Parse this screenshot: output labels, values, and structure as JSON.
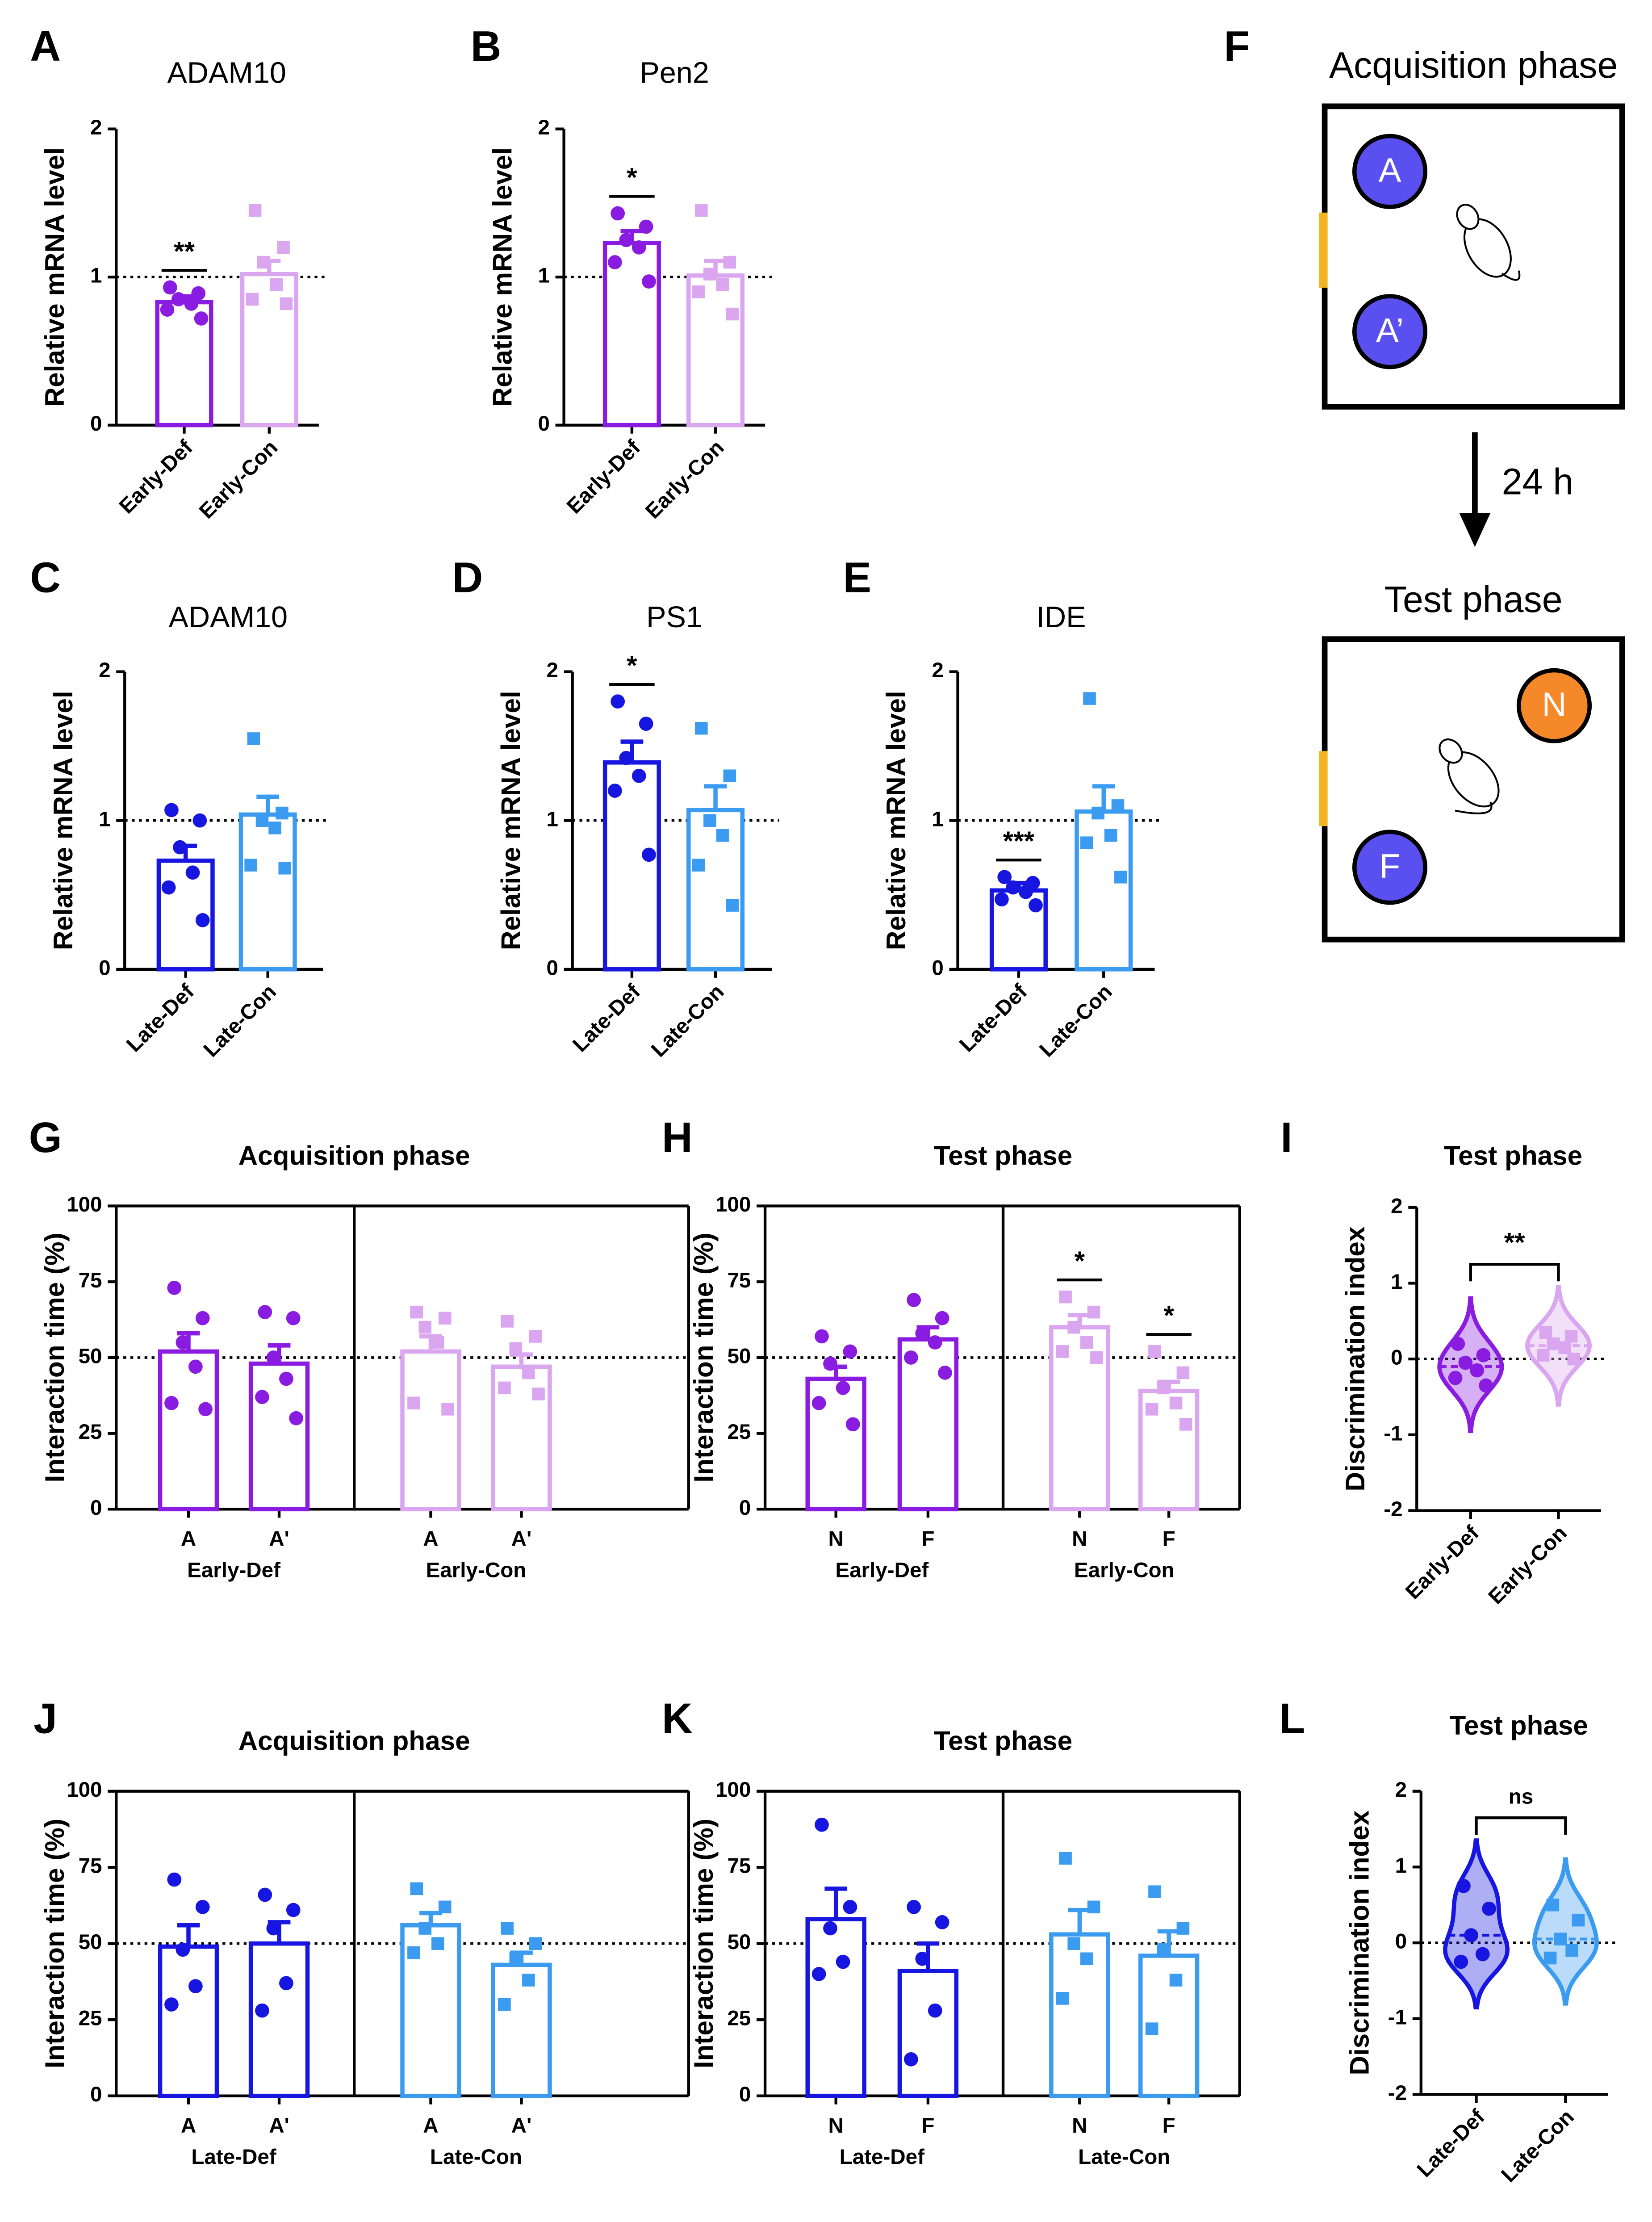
{
  "chart_data": [
    {
      "type": "bar",
      "panel": "A",
      "title": "ADAM10",
      "y_label": "Relative mRNA level",
      "categories": [
        "Early-Def",
        "Early-Con"
      ],
      "values": [
        0.83,
        1.02
      ],
      "errors": [
        0.04,
        0.09
      ],
      "points": [
        [
          0.93,
          0.89,
          0.85,
          0.82,
          0.78,
          0.72
        ],
        [
          1.45,
          1.2,
          1.1,
          0.95,
          0.85,
          0.82
        ]
      ],
      "colors": [
        "#8a1be0",
        "#d9a6ef"
      ],
      "markers": [
        "circle",
        "square"
      ],
      "ylim": [
        0,
        2
      ],
      "yticks": [
        0,
        1,
        2
      ],
      "reference_line": 1,
      "annotations": [
        {
          "text": "**",
          "categories": [
            0
          ]
        }
      ]
    },
    {
      "type": "bar",
      "panel": "B",
      "title": "Pen2",
      "y_label": "Relative mRNA level",
      "categories": [
        "Early-Def",
        "Early-Con"
      ],
      "values": [
        1.23,
        1.01
      ],
      "errors": [
        0.08,
        0.1
      ],
      "points": [
        [
          1.43,
          1.34,
          1.25,
          1.2,
          1.1,
          0.97
        ],
        [
          1.45,
          1.1,
          1.02,
          0.95,
          0.9,
          0.75
        ]
      ],
      "colors": [
        "#8a1be0",
        "#d9a6ef"
      ],
      "markers": [
        "circle",
        "square"
      ],
      "ylim": [
        0,
        2
      ],
      "yticks": [
        0,
        1,
        2
      ],
      "reference_line": 1,
      "annotations": [
        {
          "text": "*",
          "categories": [
            0
          ]
        }
      ]
    },
    {
      "type": "bar",
      "panel": "C",
      "title": "ADAM10",
      "y_label": "Relative mRNA level",
      "categories": [
        "Late-Def",
        "Late-Con"
      ],
      "values": [
        0.73,
        1.04
      ],
      "errors": [
        0.1,
        0.12
      ],
      "points": [
        [
          1.07,
          1.0,
          0.82,
          0.65,
          0.55,
          0.33
        ],
        [
          1.55,
          1.05,
          1.0,
          0.95,
          0.7,
          0.68
        ]
      ],
      "colors": [
        "#1616e0",
        "#3a9bf0"
      ],
      "markers": [
        "circle",
        "square"
      ],
      "ylim": [
        0,
        2
      ],
      "yticks": [
        0,
        1,
        2
      ],
      "reference_line": 1,
      "annotations": []
    },
    {
      "type": "bar",
      "panel": "D",
      "title": "PS1",
      "y_label": "Relative mRNA level",
      "categories": [
        "Late-Def",
        "Late-Con"
      ],
      "values": [
        1.39,
        1.07
      ],
      "errors": [
        0.14,
        0.16
      ],
      "points": [
        [
          1.8,
          1.65,
          1.42,
          1.3,
          1.2,
          0.77
        ],
        [
          1.62,
          1.3,
          1.0,
          0.9,
          0.7,
          0.43
        ]
      ],
      "colors": [
        "#1616e0",
        "#3a9bf0"
      ],
      "markers": [
        "circle",
        "square"
      ],
      "ylim": [
        0,
        2
      ],
      "yticks": [
        0,
        1,
        2
      ],
      "reference_line": 1,
      "annotations": [
        {
          "text": "*",
          "categories": [
            0
          ]
        }
      ]
    },
    {
      "type": "bar",
      "panel": "E",
      "title": "IDE",
      "y_label": "Relative mRNA level",
      "categories": [
        "Late-Def",
        "Late-Con"
      ],
      "values": [
        0.53,
        1.06
      ],
      "errors": [
        0.05,
        0.17
      ],
      "points": [
        [
          0.62,
          0.58,
          0.55,
          0.52,
          0.47,
          0.43
        ],
        [
          1.82,
          1.1,
          1.05,
          0.9,
          0.85,
          0.62
        ]
      ],
      "colors": [
        "#1616e0",
        "#3a9bf0"
      ],
      "markers": [
        "circle",
        "square"
      ],
      "ylim": [
        0,
        2
      ],
      "yticks": [
        0,
        1,
        2
      ],
      "reference_line": 1,
      "annotations": [
        {
          "text": "***",
          "categories": [
            0
          ]
        }
      ]
    },
    {
      "type": "bar",
      "panel": "G",
      "title": "Acquisition phase",
      "y_label": "Interaction time (%)",
      "categories": [
        "A",
        "A'",
        "A",
        "A'"
      ],
      "groups": [
        "Early-Def",
        "Early-Con"
      ],
      "values": [
        52,
        48,
        52,
        47
      ],
      "errors": [
        6,
        6,
        5,
        4
      ],
      "points": [
        [
          73,
          63,
          55,
          47,
          35,
          33
        ],
        [
          65,
          63,
          50,
          43,
          37,
          30
        ],
        [
          65,
          63,
          60,
          55,
          35,
          33
        ],
        [
          62,
          57,
          53,
          45,
          40,
          38
        ]
      ],
      "colors": [
        "#8a1be0",
        "#8a1be0",
        "#d9a6ef",
        "#d9a6ef"
      ],
      "markers": [
        "circle",
        "circle",
        "square",
        "square"
      ],
      "ylim": [
        0,
        100
      ],
      "yticks": [
        0,
        25,
        50,
        75,
        100
      ],
      "reference_line": 50,
      "annotations": []
    },
    {
      "type": "bar",
      "panel": "H",
      "title": "Test phase",
      "y_label": "Interaction time (%)",
      "categories": [
        "N",
        "F",
        "N",
        "F"
      ],
      "groups": [
        "Early-Def",
        "Early-Con"
      ],
      "values": [
        43,
        56,
        60,
        39
      ],
      "errors": [
        4,
        4,
        4,
        3
      ],
      "points": [
        [
          57,
          52,
          48,
          40,
          35,
          28
        ],
        [
          69,
          63,
          58,
          55,
          50,
          45
        ],
        [
          70,
          65,
          60,
          55,
          52,
          50
        ],
        [
          52,
          45,
          40,
          35,
          33,
          28
        ]
      ],
      "colors": [
        "#8a1be0",
        "#8a1be0",
        "#d9a6ef",
        "#d9a6ef"
      ],
      "markers": [
        "circle",
        "circle",
        "square",
        "square"
      ],
      "ylim": [
        0,
        100
      ],
      "yticks": [
        0,
        25,
        50,
        75,
        100
      ],
      "reference_line": 50,
      "annotations": [
        {
          "text": "*",
          "categories": [
            2
          ]
        },
        {
          "text": "*",
          "categories": [
            3
          ]
        }
      ]
    },
    {
      "type": "violin",
      "panel": "I",
      "title": "Test phase",
      "y_label": "Discrimination index",
      "categories": [
        "Early-Def",
        "Early-Con"
      ],
      "points": [
        [
          0.2,
          0.05,
          -0.05,
          -0.15,
          -0.25,
          -0.35
        ],
        [
          0.35,
          0.3,
          0.2,
          0.15,
          0.05,
          0
        ]
      ],
      "colors": [
        "#8a1be0",
        "#d9a6ef"
      ],
      "markers": [
        "circle",
        "square"
      ],
      "ylim": [
        -2,
        2
      ],
      "yticks": [
        -2,
        -1,
        0,
        1,
        2
      ],
      "reference_line": 0,
      "annotations": [
        {
          "text": "**",
          "categories": [
            0,
            1
          ]
        }
      ]
    },
    {
      "type": "bar",
      "panel": "J",
      "title": "Acquisition phase",
      "y_label": "Interaction time (%)",
      "categories": [
        "A",
        "A'",
        "A",
        "A'"
      ],
      "groups": [
        "Late-Def",
        "Late-Con"
      ],
      "values": [
        49,
        50,
        56,
        43
      ],
      "errors": [
        7,
        7,
        4,
        4
      ],
      "points": [
        [
          71,
          62,
          48,
          36,
          30
        ],
        [
          66,
          61,
          55,
          37,
          28
        ],
        [
          68,
          62,
          55,
          50,
          47
        ],
        [
          55,
          50,
          45,
          38,
          30
        ]
      ],
      "colors": [
        "#1616e0",
        "#1616e0",
        "#3a9bf0",
        "#3a9bf0"
      ],
      "markers": [
        "circle",
        "circle",
        "square",
        "square"
      ],
      "ylim": [
        0,
        100
      ],
      "yticks": [
        0,
        25,
        50,
        75,
        100
      ],
      "reference_line": 50,
      "annotations": []
    },
    {
      "type": "bar",
      "panel": "K",
      "title": "Test phase",
      "y_label": "Interaction time (%)",
      "categories": [
        "N",
        "F",
        "N",
        "F"
      ],
      "groups": [
        "Late-Def",
        "Late-Con"
      ],
      "values": [
        58,
        41,
        53,
        46
      ],
      "errors": [
        10,
        9,
        8,
        8
      ],
      "points": [
        [
          89,
          62,
          55,
          44,
          40
        ],
        [
          62,
          57,
          45,
          28,
          12
        ],
        [
          78,
          62,
          50,
          45,
          32
        ],
        [
          67,
          55,
          48,
          38,
          22
        ]
      ],
      "colors": [
        "#1616e0",
        "#1616e0",
        "#3a9bf0",
        "#3a9bf0"
      ],
      "markers": [
        "circle",
        "circle",
        "square",
        "square"
      ],
      "ylim": [
        0,
        100
      ],
      "yticks": [
        0,
        25,
        50,
        75,
        100
      ],
      "reference_line": 50,
      "annotations": []
    },
    {
      "type": "violin",
      "panel": "L",
      "title": "Test phase",
      "y_label": "Discrimination index",
      "categories": [
        "Late-Def",
        "Late-Con"
      ],
      "points": [
        [
          0.75,
          0.45,
          0.1,
          -0.15,
          -0.25
        ],
        [
          0.5,
          0.3,
          0.05,
          -0.1,
          -0.2
        ]
      ],
      "colors": [
        "#1616e0",
        "#3a9bf0"
      ],
      "markers": [
        "circle",
        "square"
      ],
      "ylim": [
        -2,
        2
      ],
      "yticks": [
        -2,
        -1,
        0,
        1,
        2
      ],
      "reference_line": 0,
      "annotations": [
        {
          "text": "ns",
          "categories": [
            0,
            1
          ]
        }
      ]
    }
  ],
  "diagram": {
    "panel": "F",
    "acquisition_title": "Acquisition phase",
    "acquisition_objects": [
      "A",
      "A’"
    ],
    "delay": "24 h",
    "test_title": "Test phase",
    "test_objects": [
      "N",
      "F"
    ]
  }
}
